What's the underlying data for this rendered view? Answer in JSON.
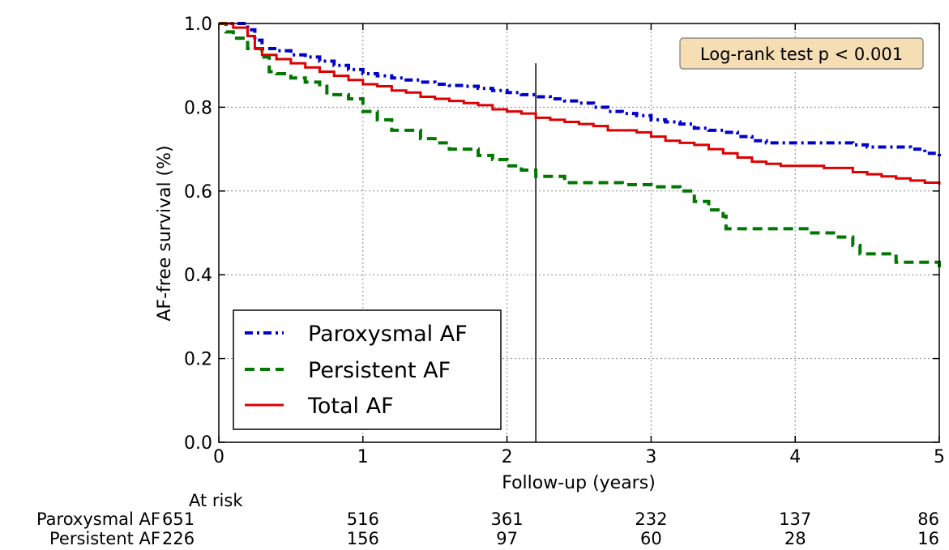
{
  "chart_data": {
    "type": "line",
    "xlabel": "Follow-up (years)",
    "ylabel": "AF-free survival (%)",
    "xlim": [
      0,
      5
    ],
    "ylim": [
      0,
      1.0
    ],
    "xticks": [
      0,
      1,
      2,
      3,
      4,
      5
    ],
    "xtick_labels": [
      "0",
      "1",
      "2",
      "3",
      "4",
      "5"
    ],
    "yticks": [
      0,
      0.2,
      0.4,
      0.6,
      0.8,
      1.0
    ],
    "ytick_labels": [
      "0.0",
      "0.2",
      "0.4",
      "0.6",
      "0.8",
      "1.0"
    ],
    "grid": true,
    "legend_position": "bottom-left",
    "annotation": "Log-rank test p < 0.001",
    "reference_line_x": 2.2,
    "series": [
      {
        "name": "Paroxysmal AF",
        "color": "#0000cc",
        "style": "dashdot",
        "steps": [
          [
            0,
            1.0
          ],
          [
            0.15,
            1.0
          ],
          [
            0.2,
            0.985
          ],
          [
            0.25,
            0.96
          ],
          [
            0.3,
            0.94
          ],
          [
            0.4,
            0.935
          ],
          [
            0.5,
            0.925
          ],
          [
            0.6,
            0.92
          ],
          [
            0.7,
            0.91
          ],
          [
            0.8,
            0.9
          ],
          [
            0.9,
            0.89
          ],
          [
            1.0,
            0.88
          ],
          [
            1.1,
            0.875
          ],
          [
            1.2,
            0.87
          ],
          [
            1.3,
            0.865
          ],
          [
            1.4,
            0.86
          ],
          [
            1.5,
            0.855
          ],
          [
            1.6,
            0.852
          ],
          [
            1.7,
            0.85
          ],
          [
            1.8,
            0.845
          ],
          [
            1.9,
            0.84
          ],
          [
            2.0,
            0.835
          ],
          [
            2.1,
            0.83
          ],
          [
            2.2,
            0.825
          ],
          [
            2.3,
            0.82
          ],
          [
            2.4,
            0.815
          ],
          [
            2.5,
            0.81
          ],
          [
            2.6,
            0.8
          ],
          [
            2.7,
            0.79
          ],
          [
            2.8,
            0.785
          ],
          [
            2.9,
            0.78
          ],
          [
            3.0,
            0.77
          ],
          [
            3.1,
            0.765
          ],
          [
            3.2,
            0.76
          ],
          [
            3.3,
            0.75
          ],
          [
            3.4,
            0.745
          ],
          [
            3.5,
            0.74
          ],
          [
            3.6,
            0.73
          ],
          [
            3.7,
            0.72
          ],
          [
            3.8,
            0.715
          ],
          [
            4.0,
            0.715
          ],
          [
            4.2,
            0.715
          ],
          [
            4.4,
            0.71
          ],
          [
            4.5,
            0.705
          ],
          [
            4.6,
            0.705
          ],
          [
            4.7,
            0.705
          ],
          [
            4.8,
            0.7
          ],
          [
            4.9,
            0.69
          ],
          [
            5.0,
            0.68
          ]
        ]
      },
      {
        "name": "Persistent AF",
        "color": "#007700",
        "style": "dashed",
        "steps": [
          [
            0,
            1.0
          ],
          [
            0.05,
            0.98
          ],
          [
            0.1,
            0.965
          ],
          [
            0.2,
            0.94
          ],
          [
            0.3,
            0.92
          ],
          [
            0.35,
            0.885
          ],
          [
            0.4,
            0.88
          ],
          [
            0.5,
            0.87
          ],
          [
            0.6,
            0.86
          ],
          [
            0.7,
            0.85
          ],
          [
            0.75,
            0.83
          ],
          [
            0.9,
            0.82
          ],
          [
            1.0,
            0.79
          ],
          [
            1.1,
            0.77
          ],
          [
            1.2,
            0.745
          ],
          [
            1.4,
            0.725
          ],
          [
            1.5,
            0.715
          ],
          [
            1.6,
            0.7
          ],
          [
            1.8,
            0.685
          ],
          [
            1.9,
            0.675
          ],
          [
            2.0,
            0.66
          ],
          [
            2.1,
            0.65
          ],
          [
            2.2,
            0.635
          ],
          [
            2.4,
            0.62
          ],
          [
            2.6,
            0.62
          ],
          [
            2.8,
            0.615
          ],
          [
            3.0,
            0.61
          ],
          [
            3.2,
            0.6
          ],
          [
            3.3,
            0.575
          ],
          [
            3.4,
            0.555
          ],
          [
            3.5,
            0.54
          ],
          [
            3.52,
            0.51
          ],
          [
            4.0,
            0.51
          ],
          [
            4.1,
            0.5
          ],
          [
            4.3,
            0.49
          ],
          [
            4.4,
            0.47
          ],
          [
            4.45,
            0.45
          ],
          [
            4.6,
            0.45
          ],
          [
            4.7,
            0.43
          ],
          [
            4.9,
            0.43
          ],
          [
            5.0,
            0.41
          ]
        ]
      },
      {
        "name": "Total AF",
        "color": "#dd0000",
        "style": "solid",
        "steps": [
          [
            0,
            1.0
          ],
          [
            0.1,
            0.99
          ],
          [
            0.2,
            0.97
          ],
          [
            0.25,
            0.94
          ],
          [
            0.3,
            0.925
          ],
          [
            0.4,
            0.915
          ],
          [
            0.5,
            0.905
          ],
          [
            0.6,
            0.895
          ],
          [
            0.7,
            0.885
          ],
          [
            0.8,
            0.875
          ],
          [
            0.9,
            0.865
          ],
          [
            1.0,
            0.855
          ],
          [
            1.1,
            0.85
          ],
          [
            1.2,
            0.84
          ],
          [
            1.3,
            0.835
          ],
          [
            1.4,
            0.825
          ],
          [
            1.5,
            0.82
          ],
          [
            1.6,
            0.815
          ],
          [
            1.7,
            0.81
          ],
          [
            1.8,
            0.805
          ],
          [
            1.9,
            0.795
          ],
          [
            2.0,
            0.79
          ],
          [
            2.1,
            0.785
          ],
          [
            2.2,
            0.775
          ],
          [
            2.3,
            0.77
          ],
          [
            2.4,
            0.765
          ],
          [
            2.5,
            0.76
          ],
          [
            2.6,
            0.755
          ],
          [
            2.7,
            0.745
          ],
          [
            2.8,
            0.745
          ],
          [
            2.9,
            0.74
          ],
          [
            3.0,
            0.73
          ],
          [
            3.1,
            0.72
          ],
          [
            3.2,
            0.715
          ],
          [
            3.3,
            0.71
          ],
          [
            3.4,
            0.7
          ],
          [
            3.5,
            0.69
          ],
          [
            3.6,
            0.68
          ],
          [
            3.7,
            0.67
          ],
          [
            3.8,
            0.665
          ],
          [
            3.9,
            0.66
          ],
          [
            4.0,
            0.66
          ],
          [
            4.2,
            0.655
          ],
          [
            4.4,
            0.645
          ],
          [
            4.5,
            0.64
          ],
          [
            4.6,
            0.635
          ],
          [
            4.7,
            0.63
          ],
          [
            4.8,
            0.625
          ],
          [
            4.9,
            0.62
          ],
          [
            5.0,
            0.615
          ]
        ]
      }
    ],
    "at_risk": {
      "title": "At risk",
      "times": [
        0,
        1,
        2,
        3,
        4,
        5
      ],
      "rows": [
        {
          "name": "Paroxysmal AF",
          "values": [
            "651",
            "516",
            "361",
            "232",
            "137",
            "86"
          ]
        },
        {
          "name": "Persistent AF",
          "values": [
            "226",
            "156",
            "97",
            "60",
            "28",
            "16"
          ]
        }
      ]
    }
  }
}
